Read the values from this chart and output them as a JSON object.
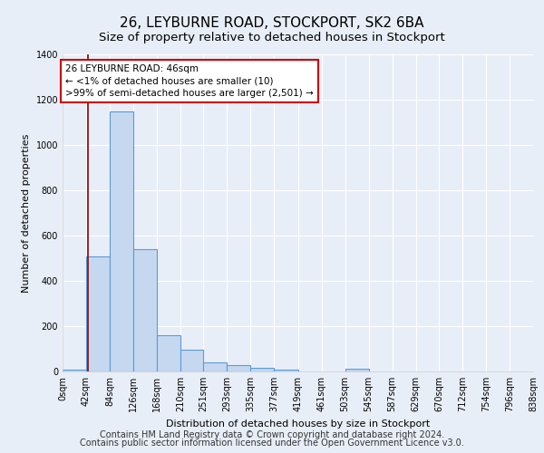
{
  "title1": "26, LEYBURNE ROAD, STOCKPORT, SK2 6BA",
  "title2": "Size of property relative to detached houses in Stockport",
  "xlabel": "Distribution of detached houses by size in Stockport",
  "ylabel": "Number of detached properties",
  "footnote1": "Contains HM Land Registry data © Crown copyright and database right 2024.",
  "footnote2": "Contains public sector information licensed under the Open Government Licence v3.0.",
  "annotation_line1": "26 LEYBURNE ROAD: 46sqm",
  "annotation_line2": "← <1% of detached houses are smaller (10)",
  "annotation_line3": ">99% of semi-detached houses are larger (2,501) →",
  "bar_left_edges": [
    0,
    42,
    84,
    126,
    168,
    210,
    251,
    293,
    335,
    377,
    419,
    461,
    503,
    545,
    587,
    629,
    670,
    712,
    754,
    796
  ],
  "bar_widths": [
    42,
    42,
    42,
    42,
    42,
    41,
    42,
    42,
    42,
    42,
    42,
    42,
    42,
    42,
    42,
    41,
    42,
    42,
    42,
    42
  ],
  "bar_heights": [
    10,
    510,
    1150,
    540,
    160,
    95,
    40,
    28,
    15,
    10,
    0,
    0,
    12,
    0,
    0,
    0,
    0,
    0,
    0,
    0
  ],
  "bar_color": "#c5d8f0",
  "bar_edge_color": "#5b9bd5",
  "tick_labels": [
    "0sqm",
    "42sqm",
    "84sqm",
    "126sqm",
    "168sqm",
    "210sqm",
    "251sqm",
    "293sqm",
    "335sqm",
    "377sqm",
    "419sqm",
    "461sqm",
    "503sqm",
    "545sqm",
    "587sqm",
    "629sqm",
    "670sqm",
    "712sqm",
    "754sqm",
    "796sqm",
    "838sqm"
  ],
  "vline_x": 46,
  "vline_color": "#8b0000",
  "ylim": [
    0,
    1400
  ],
  "yticks": [
    0,
    200,
    400,
    600,
    800,
    1000,
    1200,
    1400
  ],
  "background_color": "#e8eef8",
  "grid_color": "#ffffff",
  "title1_fontsize": 11,
  "title2_fontsize": 9.5,
  "axis_label_fontsize": 8,
  "tick_fontsize": 7,
  "footnote_fontsize": 7
}
